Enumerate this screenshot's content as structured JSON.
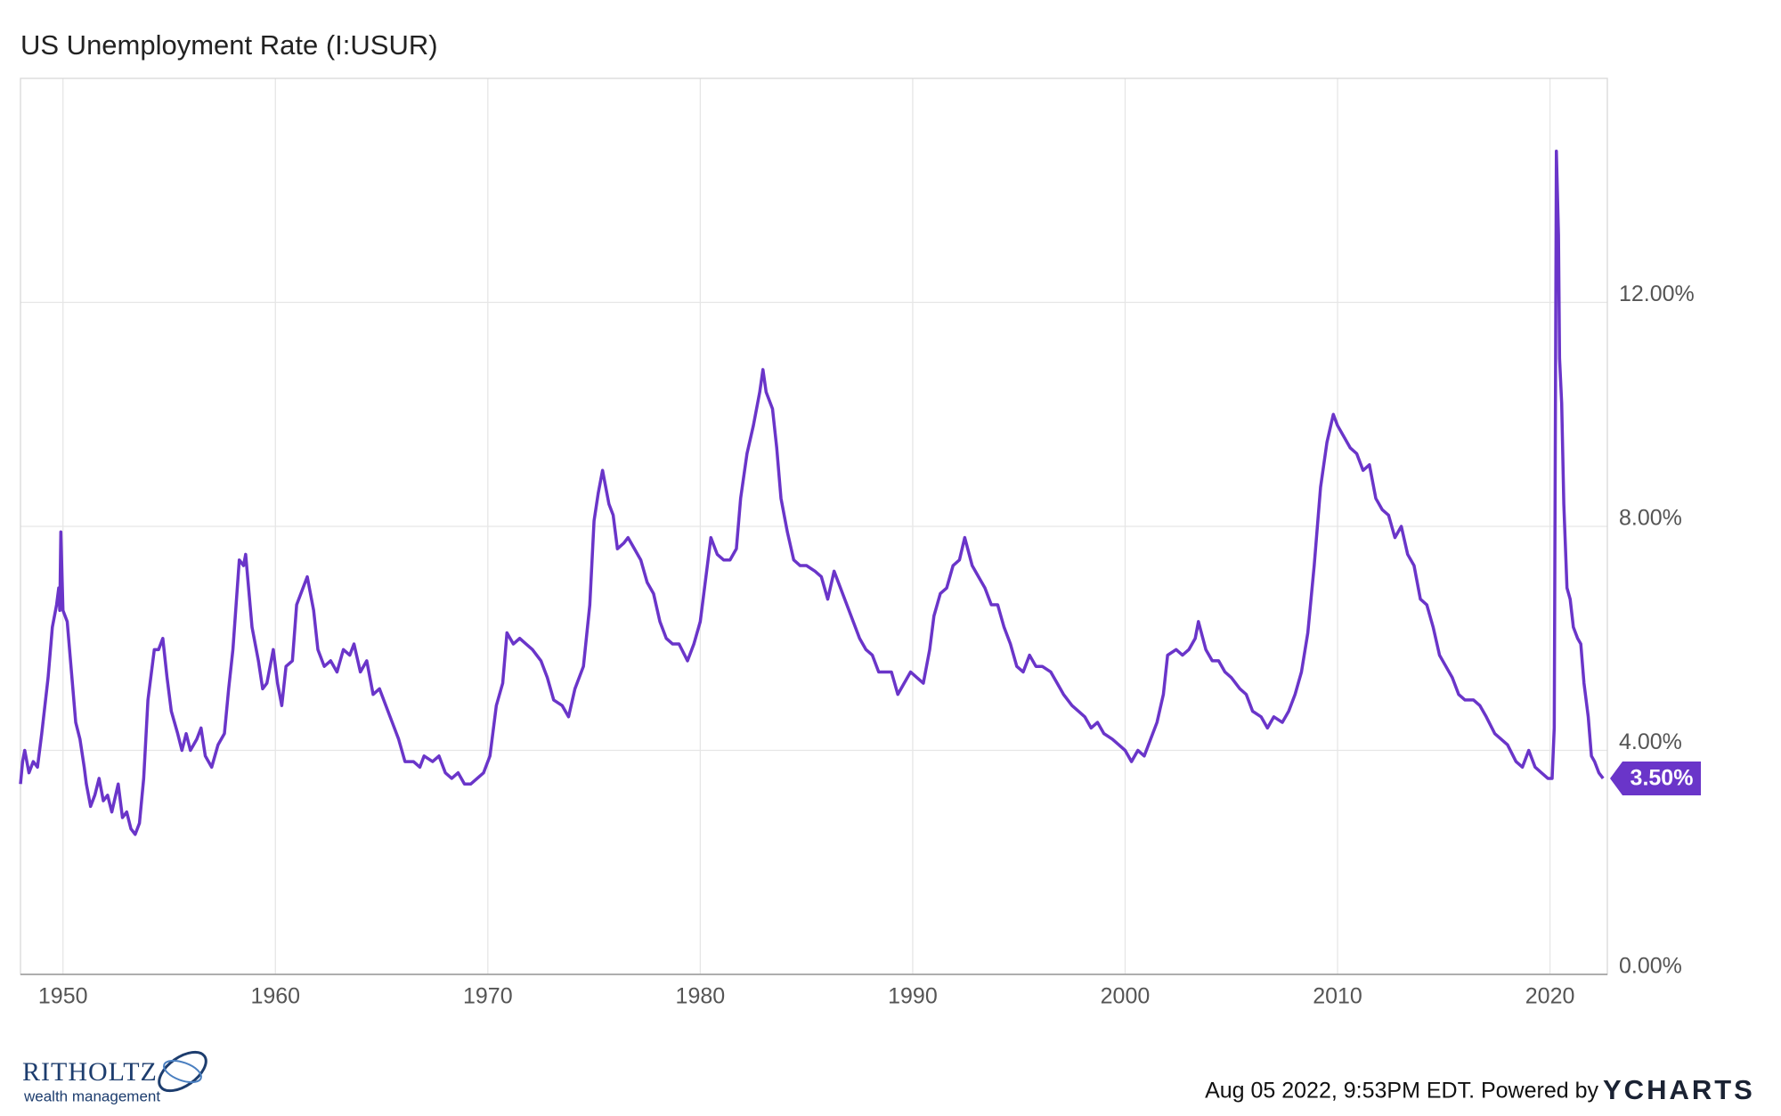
{
  "chart_data": {
    "type": "line",
    "title": "US Unemployment Rate (I:USUR)",
    "color": "#6a35c9",
    "grid": true,
    "xlim": [
      1948,
      2022.7
    ],
    "ylim": [
      0,
      16
    ],
    "xticks": [
      1950,
      1960,
      1970,
      1980,
      1990,
      2000,
      2010,
      2020
    ],
    "yticks": [
      {
        "value": 0,
        "label": "0.00%"
      },
      {
        "value": 4,
        "label": "4.00%"
      },
      {
        "value": 8,
        "label": "8.00%"
      },
      {
        "value": 12,
        "label": "12.00%"
      }
    ],
    "last_value": {
      "value": 3.5,
      "label": "3.50%"
    },
    "x": [
      1948.0,
      1948.1,
      1948.2,
      1948.4,
      1948.6,
      1948.8,
      1949.0,
      1949.3,
      1949.5,
      1949.7,
      1949.8,
      1949.85,
      1949.9,
      1950.0,
      1950.2,
      1950.4,
      1950.6,
      1950.8,
      1951.0,
      1951.1,
      1951.3,
      1951.5,
      1951.7,
      1951.9,
      1952.1,
      1952.3,
      1952.6,
      1952.8,
      1953.0,
      1953.2,
      1953.4,
      1953.6,
      1953.8,
      1954.0,
      1954.3,
      1954.5,
      1954.7,
      1954.9,
      1955.1,
      1955.4,
      1955.6,
      1955.8,
      1956.0,
      1956.3,
      1956.5,
      1956.7,
      1957.0,
      1957.3,
      1957.6,
      1957.8,
      1958.0,
      1958.3,
      1958.5,
      1958.6,
      1958.9,
      1959.2,
      1959.4,
      1959.6,
      1959.9,
      1960.1,
      1960.3,
      1960.5,
      1960.8,
      1961.0,
      1961.3,
      1961.5,
      1961.8,
      1962.0,
      1962.3,
      1962.6,
      1962.9,
      1963.2,
      1963.5,
      1963.7,
      1964.0,
      1964.3,
      1964.6,
      1964.9,
      1965.2,
      1965.5,
      1965.8,
      1966.1,
      1966.5,
      1966.8,
      1967.0,
      1967.4,
      1967.7,
      1968.0,
      1968.3,
      1968.6,
      1968.9,
      1969.2,
      1969.5,
      1969.8,
      1970.1,
      1970.4,
      1970.7,
      1970.9,
      1971.2,
      1971.5,
      1971.8,
      1972.1,
      1972.5,
      1972.8,
      1973.1,
      1973.5,
      1973.8,
      1974.1,
      1974.5,
      1974.8,
      1975.0,
      1975.2,
      1975.4,
      1975.7,
      1975.9,
      1976.1,
      1976.4,
      1976.6,
      1976.9,
      1977.2,
      1977.5,
      1977.8,
      1978.1,
      1978.4,
      1978.7,
      1979.0,
      1979.4,
      1979.7,
      1980.0,
      1980.3,
      1980.5,
      1980.8,
      1981.1,
      1981.4,
      1981.7,
      1981.9,
      1982.2,
      1982.5,
      1982.8,
      1982.95,
      1983.1,
      1983.4,
      1983.6,
      1983.8,
      1984.1,
      1984.4,
      1984.7,
      1985.0,
      1985.4,
      1985.7,
      1986.0,
      1986.3,
      1986.6,
      1986.9,
      1987.2,
      1987.5,
      1987.8,
      1988.1,
      1988.4,
      1988.7,
      1989.0,
      1989.3,
      1989.6,
      1989.9,
      1990.2,
      1990.5,
      1990.8,
      1991.0,
      1991.3,
      1991.6,
      1991.9,
      1992.2,
      1992.45,
      1992.8,
      1993.1,
      1993.4,
      1993.7,
      1994.0,
      1994.3,
      1994.6,
      1994.9,
      1995.2,
      1995.5,
      1995.8,
      1996.1,
      1996.5,
      1996.8,
      1997.1,
      1997.5,
      1997.8,
      1998.1,
      1998.4,
      1998.7,
      1999.0,
      1999.4,
      1999.7,
      2000.0,
      2000.3,
      2000.6,
      2000.9,
      2001.2,
      2001.5,
      2001.8,
      2002.0,
      2002.4,
      2002.7,
      2003.0,
      2003.3,
      2003.45,
      2003.8,
      2004.1,
      2004.4,
      2004.7,
      2005.0,
      2005.4,
      2005.7,
      2006.0,
      2006.4,
      2006.7,
      2007.0,
      2007.4,
      2007.7,
      2008.0,
      2008.3,
      2008.6,
      2008.9,
      2009.2,
      2009.5,
      2009.8,
      2010.0,
      2010.3,
      2010.6,
      2010.9,
      2011.2,
      2011.5,
      2011.8,
      2012.1,
      2012.4,
      2012.7,
      2013.0,
      2013.3,
      2013.6,
      2013.9,
      2014.2,
      2014.5,
      2014.8,
      2015.1,
      2015.4,
      2015.7,
      2016.0,
      2016.4,
      2016.7,
      2017.0,
      2017.4,
      2017.7,
      2018.0,
      2018.4,
      2018.7,
      2019.0,
      2019.3,
      2019.6,
      2019.9,
      2020.1,
      2020.2,
      2020.3,
      2020.4,
      2020.45,
      2020.55,
      2020.65,
      2020.8,
      2020.95,
      2021.1,
      2021.3,
      2021.45,
      2021.6,
      2021.8,
      2021.95,
      2022.1,
      2022.3,
      2022.5
    ],
    "values": [
      3.4,
      3.8,
      4.0,
      3.6,
      3.8,
      3.7,
      4.3,
      5.3,
      6.2,
      6.6,
      6.9,
      6.5,
      7.9,
      6.5,
      6.3,
      5.4,
      4.5,
      4.2,
      3.7,
      3.4,
      3.0,
      3.2,
      3.5,
      3.1,
      3.2,
      2.9,
      3.4,
      2.8,
      2.9,
      2.6,
      2.5,
      2.7,
      3.5,
      4.9,
      5.8,
      5.8,
      6.0,
      5.3,
      4.7,
      4.3,
      4.0,
      4.3,
      4.0,
      4.2,
      4.4,
      3.9,
      3.7,
      4.1,
      4.3,
      5.1,
      5.8,
      7.4,
      7.3,
      7.5,
      6.2,
      5.6,
      5.1,
      5.2,
      5.8,
      5.2,
      4.8,
      5.5,
      5.6,
      6.6,
      6.9,
      7.1,
      6.5,
      5.8,
      5.5,
      5.6,
      5.4,
      5.8,
      5.7,
      5.9,
      5.4,
      5.6,
      5.0,
      5.1,
      4.8,
      4.5,
      4.2,
      3.8,
      3.8,
      3.7,
      3.9,
      3.8,
      3.9,
      3.6,
      3.5,
      3.6,
      3.4,
      3.4,
      3.5,
      3.6,
      3.9,
      4.8,
      5.2,
      6.1,
      5.9,
      6.0,
      5.9,
      5.8,
      5.6,
      5.3,
      4.9,
      4.8,
      4.6,
      5.1,
      5.5,
      6.6,
      8.1,
      8.6,
      9.0,
      8.4,
      8.2,
      7.6,
      7.7,
      7.8,
      7.6,
      7.4,
      7.0,
      6.8,
      6.3,
      6.0,
      5.9,
      5.9,
      5.6,
      5.9,
      6.3,
      7.2,
      7.8,
      7.5,
      7.4,
      7.4,
      7.6,
      8.5,
      9.3,
      9.8,
      10.4,
      10.8,
      10.4,
      10.1,
      9.4,
      8.5,
      7.9,
      7.4,
      7.3,
      7.3,
      7.2,
      7.1,
      6.7,
      7.2,
      6.9,
      6.6,
      6.3,
      6.0,
      5.8,
      5.7,
      5.4,
      5.4,
      5.4,
      5.0,
      5.2,
      5.4,
      5.3,
      5.2,
      5.8,
      6.4,
      6.8,
      6.9,
      7.3,
      7.4,
      7.8,
      7.3,
      7.1,
      6.9,
      6.6,
      6.6,
      6.2,
      5.9,
      5.5,
      5.4,
      5.7,
      5.5,
      5.5,
      5.4,
      5.2,
      5.0,
      4.8,
      4.7,
      4.6,
      4.4,
      4.5,
      4.3,
      4.2,
      4.1,
      4.0,
      3.8,
      4.0,
      3.9,
      4.2,
      4.5,
      5.0,
      5.7,
      5.8,
      5.7,
      5.8,
      6.0,
      6.3,
      5.8,
      5.6,
      5.6,
      5.4,
      5.3,
      5.1,
      5.0,
      4.7,
      4.6,
      4.4,
      4.6,
      4.5,
      4.7,
      5.0,
      5.4,
      6.1,
      7.3,
      8.7,
      9.5,
      10.0,
      9.8,
      9.6,
      9.4,
      9.3,
      9.0,
      9.1,
      8.5,
      8.3,
      8.2,
      7.8,
      8.0,
      7.5,
      7.3,
      6.7,
      6.6,
      6.2,
      5.7,
      5.5,
      5.3,
      5.0,
      4.9,
      4.9,
      4.8,
      4.6,
      4.3,
      4.2,
      4.1,
      3.8,
      3.7,
      4.0,
      3.7,
      3.6,
      3.5,
      3.5,
      4.4,
      14.7,
      13.2,
      11.0,
      10.2,
      8.4,
      6.9,
      6.7,
      6.2,
      6.0,
      5.9,
      5.2,
      4.6,
      3.9,
      3.8,
      3.6,
      3.5
    ]
  },
  "footer": {
    "brand": "RITHOLTZ",
    "brand_tagline": "wealth management",
    "timestamp": "Aug 05 2022, 9:53PM EDT. Powered by",
    "provider": "YCHARTS"
  }
}
